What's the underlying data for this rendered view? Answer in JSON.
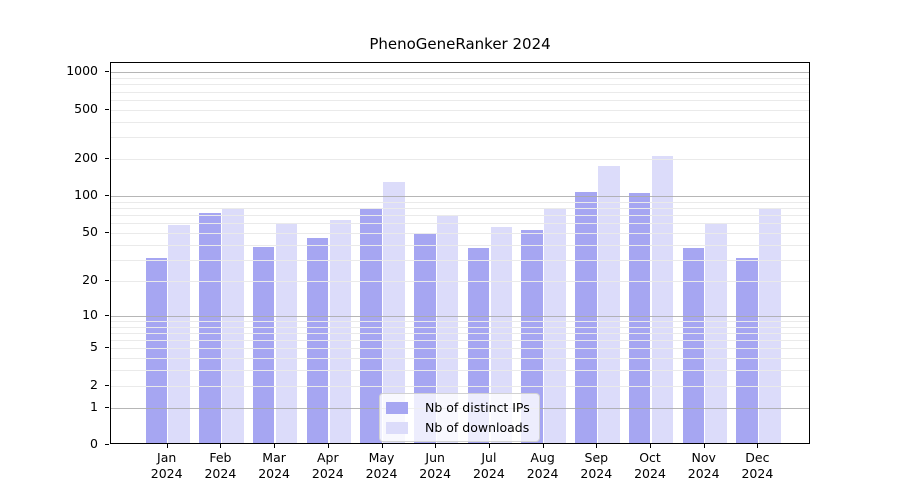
{
  "chart_data": {
    "type": "bar",
    "title": "PhenoGeneRanker 2024",
    "x_months": [
      "Jan",
      "Feb",
      "Mar",
      "Apr",
      "May",
      "Jun",
      "Jul",
      "Aug",
      "Sep",
      "Oct",
      "Nov",
      "Dec"
    ],
    "x_year": "2024",
    "series": [
      {
        "name": "Nb of distinct IPs",
        "color": "#a6a6f2",
        "values": [
          30,
          70,
          37,
          44,
          75,
          47,
          36,
          51,
          105,
          102,
          36,
          30
        ]
      },
      {
        "name": "Nb of downloads",
        "color": "#dcdcfa",
        "values": [
          56,
          76,
          58,
          62,
          125,
          67,
          54,
          75,
          170,
          204,
          58,
          75
        ]
      }
    ],
    "yscale": "log1p",
    "yticks": [
      0,
      1,
      2,
      5,
      10,
      20,
      50,
      100,
      200,
      500,
      1000
    ],
    "ylim": [
      0,
      1190
    ],
    "grid": true,
    "legend_position": "lower center",
    "colors": {
      "axis": "#000000",
      "major_grid": "#a9a9a9",
      "minor_grid": "#eaeaea",
      "background": "#ffffff"
    }
  }
}
